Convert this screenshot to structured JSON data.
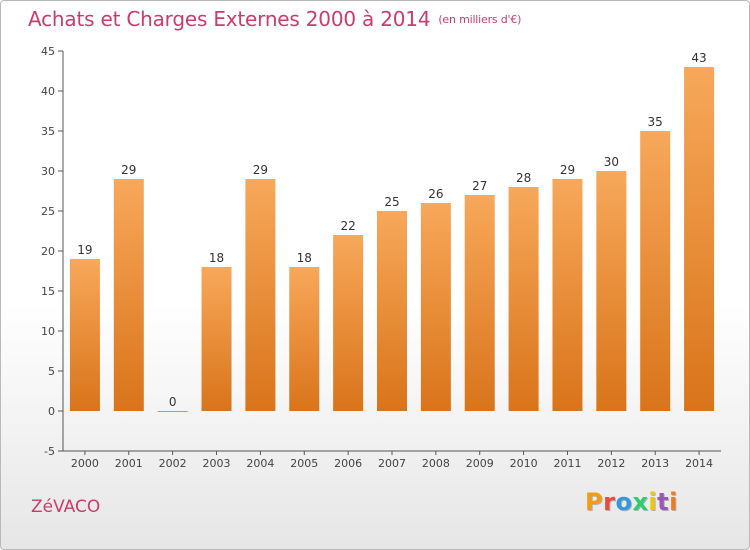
{
  "header": {
    "title": "Achats et Charges Externes 2000 à 2014",
    "subtitle": "(en milliers d'€)"
  },
  "footer": {
    "commune": "ZéVACO",
    "logo_text": "Proxiti",
    "logo_colors": [
      "#f39c12",
      "#e74c3c",
      "#3498db",
      "#2ecc71",
      "#f1c40f",
      "#9b59b6",
      "#e67e22"
    ]
  },
  "chart_data": {
    "type": "bar",
    "title": "Achats et Charges Externes 2000 à 2014",
    "subtitle": "(en milliers d'€)",
    "xlabel": "",
    "ylabel": "",
    "categories": [
      "2000",
      "2001",
      "2002",
      "2003",
      "2004",
      "2005",
      "2006",
      "2007",
      "2008",
      "2009",
      "2010",
      "2011",
      "2012",
      "2013",
      "2014"
    ],
    "values": [
      19,
      29,
      0,
      18,
      29,
      18,
      22,
      25,
      26,
      27,
      28,
      29,
      30,
      35,
      43
    ],
    "ylim": [
      -5,
      45
    ],
    "yticks": [
      -5,
      0,
      5,
      10,
      15,
      20,
      25,
      30,
      35,
      40,
      45
    ],
    "grid": false,
    "bar_color": "#f0922f",
    "bar_color_light": "#f7a85a",
    "bar_color_dark": "#d9741a"
  }
}
